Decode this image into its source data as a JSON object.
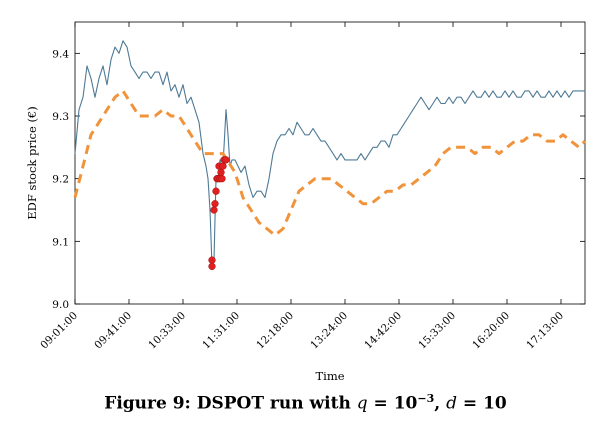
{
  "chart_data": {
    "type": "line",
    "title": "",
    "xlabel": "Time",
    "ylabel": "EDF stock price (€)",
    "ylim": [
      9.0,
      9.45
    ],
    "yticks": [
      9.0,
      9.1,
      9.2,
      9.3,
      9.4
    ],
    "ytick_labels": [
      "9.0",
      "9.1",
      "9.2",
      "9.3",
      "9.4"
    ],
    "xlim": [
      0,
      510
    ],
    "xticks": [
      0,
      54,
      108,
      162,
      216,
      270,
      324,
      378,
      432,
      486
    ],
    "xtick_labels": [
      "09:01:00",
      "09:41:00",
      "10:33:00",
      "11:31:00",
      "12:18:00",
      "13:24:00",
      "14:42:00",
      "15:33:00",
      "16:20:00",
      "17:13:00"
    ],
    "grid": false,
    "legend": "none",
    "series": [
      {
        "style": "solid",
        "color": "#4e7a96",
        "x": [
          0,
          4,
          8,
          12,
          16,
          20,
          24,
          28,
          32,
          36,
          40,
          44,
          48,
          52,
          56,
          60,
          64,
          68,
          72,
          76,
          80,
          84,
          88,
          92,
          96,
          100,
          104,
          108,
          112,
          116,
          120,
          124,
          128,
          131,
          133,
          135,
          137,
          139,
          141,
          143,
          145,
          147,
          149,
          151,
          153,
          155,
          157,
          160,
          163,
          166,
          170,
          174,
          178,
          182,
          186,
          190,
          194,
          198,
          202,
          206,
          210,
          214,
          218,
          222,
          226,
          230,
          234,
          238,
          242,
          246,
          250,
          254,
          258,
          262,
          266,
          270,
          274,
          278,
          282,
          286,
          290,
          294,
          298,
          302,
          306,
          310,
          314,
          318,
          322,
          326,
          330,
          334,
          338,
          342,
          346,
          350,
          354,
          358,
          362,
          366,
          370,
          374,
          378,
          382,
          386,
          390,
          394,
          398,
          402,
          406,
          410,
          414,
          418,
          422,
          426,
          430,
          434,
          438,
          442,
          446,
          450,
          454,
          458,
          462,
          466,
          470,
          474,
          478,
          482,
          486,
          490,
          494,
          498,
          502,
          506,
          510
        ],
        "y": [
          9.24,
          9.31,
          9.33,
          9.38,
          9.36,
          9.33,
          9.36,
          9.38,
          9.35,
          9.39,
          9.41,
          9.4,
          9.42,
          9.41,
          9.38,
          9.37,
          9.36,
          9.37,
          9.37,
          9.36,
          9.37,
          9.37,
          9.35,
          9.37,
          9.34,
          9.35,
          9.33,
          9.35,
          9.32,
          9.33,
          9.31,
          9.29,
          9.24,
          9.22,
          9.2,
          9.15,
          9.06,
          9.07,
          9.2,
          9.2,
          9.23,
          9.2,
          9.25,
          9.31,
          9.27,
          9.22,
          9.23,
          9.23,
          9.22,
          9.21,
          9.22,
          9.19,
          9.17,
          9.18,
          9.18,
          9.17,
          9.2,
          9.24,
          9.26,
          9.27,
          9.27,
          9.28,
          9.27,
          9.29,
          9.28,
          9.27,
          9.27,
          9.28,
          9.27,
          9.26,
          9.26,
          9.25,
          9.24,
          9.23,
          9.24,
          9.23,
          9.23,
          9.23,
          9.23,
          9.24,
          9.23,
          9.24,
          9.25,
          9.25,
          9.26,
          9.26,
          9.25,
          9.27,
          9.27,
          9.28,
          9.29,
          9.3,
          9.31,
          9.32,
          9.33,
          9.32,
          9.31,
          9.32,
          9.33,
          9.32,
          9.32,
          9.33,
          9.32,
          9.33,
          9.33,
          9.32,
          9.33,
          9.34,
          9.33,
          9.33,
          9.34,
          9.33,
          9.34,
          9.33,
          9.33,
          9.34,
          9.33,
          9.34,
          9.33,
          9.33,
          9.34,
          9.34,
          9.33,
          9.34,
          9.33,
          9.33,
          9.34,
          9.33,
          9.34,
          9.33,
          9.34,
          9.33,
          9.34,
          9.34,
          9.34,
          9.34
        ]
      },
      {
        "style": "dashed",
        "color": "#f0933a",
        "x": [
          0,
          8,
          16,
          24,
          32,
          40,
          48,
          56,
          64,
          72,
          80,
          88,
          96,
          104,
          112,
          120,
          128,
          132,
          136,
          140,
          144,
          148,
          152,
          156,
          160,
          168,
          176,
          184,
          192,
          200,
          208,
          216,
          224,
          232,
          240,
          248,
          256,
          264,
          272,
          280,
          288,
          296,
          304,
          312,
          320,
          328,
          336,
          344,
          352,
          360,
          368,
          376,
          384,
          392,
          400,
          408,
          416,
          424,
          432,
          440,
          448,
          456,
          464,
          472,
          480,
          488,
          496,
          504,
          510
        ],
        "y": [
          9.17,
          9.22,
          9.27,
          9.29,
          9.31,
          9.33,
          9.34,
          9.32,
          9.3,
          9.3,
          9.3,
          9.31,
          9.3,
          9.3,
          9.28,
          9.26,
          9.24,
          9.24,
          9.24,
          9.24,
          9.24,
          9.24,
          9.23,
          9.22,
          9.21,
          9.17,
          9.15,
          9.13,
          9.12,
          9.11,
          9.12,
          9.15,
          9.18,
          9.19,
          9.2,
          9.2,
          9.2,
          9.19,
          9.18,
          9.17,
          9.16,
          9.16,
          9.17,
          9.18,
          9.18,
          9.19,
          9.19,
          9.2,
          9.21,
          9.22,
          9.24,
          9.25,
          9.25,
          9.25,
          9.24,
          9.25,
          9.25,
          9.24,
          9.25,
          9.26,
          9.26,
          9.27,
          9.27,
          9.26,
          9.26,
          9.27,
          9.26,
          9.25,
          9.26
        ]
      }
    ],
    "anomalies": {
      "color": "#e02020",
      "x": [
        137,
        137,
        139,
        140,
        141,
        142,
        143,
        144,
        145,
        146,
        147,
        148,
        149,
        151
      ],
      "y": [
        9.07,
        9.06,
        9.15,
        9.16,
        9.18,
        9.2,
        9.2,
        9.22,
        9.2,
        9.21,
        9.2,
        9.22,
        9.23,
        9.23
      ]
    }
  },
  "caption": {
    "prefix": "Figure 9: DSPOT run with ",
    "q_var": "q",
    "eq": " = 10",
    "q_exp": "−3",
    "sep": ", ",
    "d_var": "d",
    "d_eq": " = 10"
  }
}
